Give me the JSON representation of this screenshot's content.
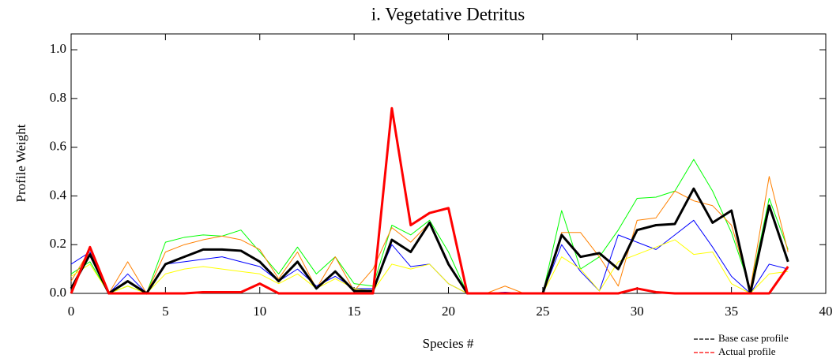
{
  "chart_data": {
    "type": "line",
    "title": "i.  Vegetative Detritus",
    "x_label": "Species #",
    "y_label": "Profile Weight",
    "x": [
      0,
      1,
      2,
      3,
      4,
      5,
      6,
      7,
      8,
      9,
      10,
      11,
      12,
      13,
      14,
      15,
      16,
      17,
      18,
      19,
      20,
      21,
      22,
      23,
      24,
      25,
      26,
      27,
      28,
      29,
      30,
      31,
      32,
      33,
      34,
      35,
      36,
      37,
      38
    ],
    "series": [
      {
        "color": "#00ff00",
        "values": [
          0.08,
          0.13,
          0,
          0.03,
          0,
          0.21,
          0.23,
          0.24,
          0.235,
          0.26,
          0.17,
          0.08,
          0.19,
          0.08,
          0.15,
          0.04,
          0.03,
          0.28,
          0.24,
          0.3,
          0.17,
          0,
          0,
          0,
          0,
          0,
          0.34,
          0.1,
          0.15,
          0.26,
          0.39,
          0.395,
          0.42,
          0.55,
          0.42,
          0.25,
          0.02,
          0.39,
          0.18
        ]
      },
      {
        "color": "#ff8000",
        "values": [
          0.05,
          0.18,
          0,
          0.13,
          0,
          0.17,
          0.2,
          0.22,
          0.235,
          0.22,
          0.18,
          0.06,
          0.17,
          0.02,
          0.15,
          0.01,
          0.1,
          0.27,
          0.21,
          0.29,
          0.12,
          0,
          0,
          0.03,
          0,
          0,
          0.25,
          0.25,
          0.15,
          0.03,
          0.3,
          0.31,
          0.42,
          0.38,
          0.36,
          0.28,
          0.02,
          0.48,
          0.17
        ]
      },
      {
        "color": "#0000ff",
        "values": [
          0.12,
          0.17,
          0,
          0.08,
          0,
          0.12,
          0.13,
          0.14,
          0.15,
          0.13,
          0.11,
          0.05,
          0.1,
          0.03,
          0.07,
          0.02,
          0.02,
          0.2,
          0.11,
          0.12,
          0.04,
          0,
          0,
          0.005,
          0,
          0,
          0.2,
          0.09,
          0.01,
          0.24,
          0.21,
          0.18,
          0.24,
          0.3,
          0.19,
          0.07,
          0,
          0.12,
          0.1
        ]
      },
      {
        "color": "#ffff00",
        "values": [
          0.07,
          0.12,
          0,
          0.03,
          0,
          0.08,
          0.1,
          0.11,
          0.1,
          0.09,
          0.08,
          0.04,
          0.08,
          0.02,
          0.06,
          0.02,
          0.01,
          0.12,
          0.1,
          0.12,
          0.04,
          0,
          0,
          0,
          0,
          0,
          0.15,
          0.1,
          0.01,
          0.13,
          0.16,
          0.19,
          0.22,
          0.16,
          0.17,
          0.04,
          0,
          0.08,
          0.09
        ]
      },
      {
        "name": "Base case profile",
        "color": "#000000",
        "width": 3,
        "values": [
          0.02,
          0.16,
          0,
          0.05,
          0,
          0.12,
          0.15,
          0.18,
          0.18,
          0.175,
          0.13,
          0.05,
          0.13,
          0.02,
          0.09,
          0.01,
          0.01,
          0.22,
          0.17,
          0.29,
          0.12,
          0,
          0,
          0,
          0,
          0,
          0.24,
          0.15,
          0.165,
          0.1,
          0.26,
          0.28,
          0.285,
          0.43,
          0.29,
          0.34,
          0,
          0.36,
          0.13
        ]
      },
      {
        "name": "Actual profile",
        "color": "#ff0000",
        "width": 3,
        "values": [
          0,
          0.19,
          0,
          0,
          0,
          0,
          0,
          0.005,
          0.005,
          0.005,
          0.04,
          0,
          0,
          0,
          0,
          0,
          0,
          0.76,
          0.28,
          0.33,
          0.35,
          0,
          0,
          0,
          0,
          0,
          0,
          0,
          0,
          0,
          0.02,
          0.005,
          0,
          0,
          0,
          0,
          0,
          0,
          0.11
        ]
      }
    ],
    "xlim": [
      0,
      40
    ],
    "xticks": [
      0,
      5,
      10,
      15,
      20,
      25,
      30,
      35,
      40
    ],
    "ylim": [
      0,
      1.065
    ],
    "yticks": [
      {
        "value": 0,
        "label": "0.0"
      },
      {
        "value": 0.2,
        "label": "0.2"
      },
      {
        "value": 0.4,
        "label": "0.4"
      },
      {
        "value": 0.6,
        "label": "0.6"
      },
      {
        "value": 0.8,
        "label": "0.8"
      },
      {
        "value": 1.0,
        "label": "1.0"
      }
    ],
    "legend": "lower-right"
  }
}
